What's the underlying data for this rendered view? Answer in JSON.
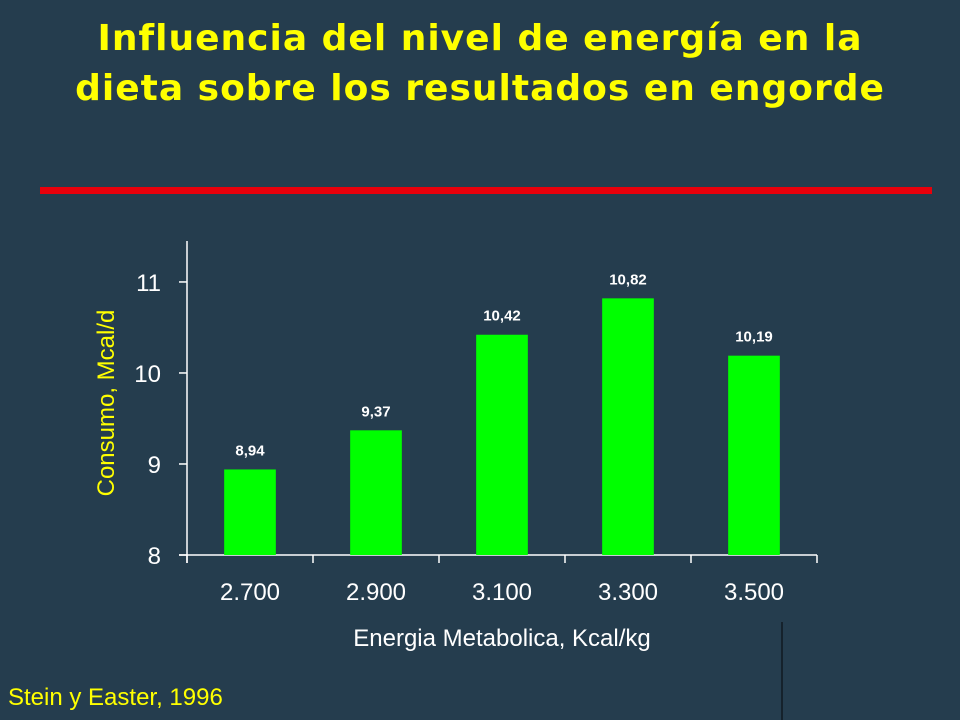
{
  "slide": {
    "title": "Influencia del nivel de energía en la dieta sobre los resultados en engorde",
    "source": "Stein y Easter, 1996"
  },
  "colors": {
    "background": "#253d4e",
    "title": "#ffff00",
    "rule": "#e8000b",
    "bar": "#00ff00",
    "axis_text": "#ffffff",
    "ylabel": "#ffff00",
    "xlabel": "#ffffff"
  },
  "chart_data": {
    "type": "bar",
    "categories": [
      "2.700",
      "2.900",
      "3.100",
      "3.300",
      "3.500"
    ],
    "values": [
      8.94,
      9.37,
      10.42,
      10.82,
      10.19
    ],
    "value_labels": [
      "8,94",
      "9,37",
      "10,42",
      "10,82",
      "10,19"
    ],
    "xlabel": "Energia Metabolica, Kcal/kg",
    "ylabel": "Consumo, Mcal/d",
    "yticks": [
      8,
      9,
      10,
      11
    ],
    "ylim": [
      8,
      11.45
    ],
    "grid": false,
    "legend": "none"
  }
}
